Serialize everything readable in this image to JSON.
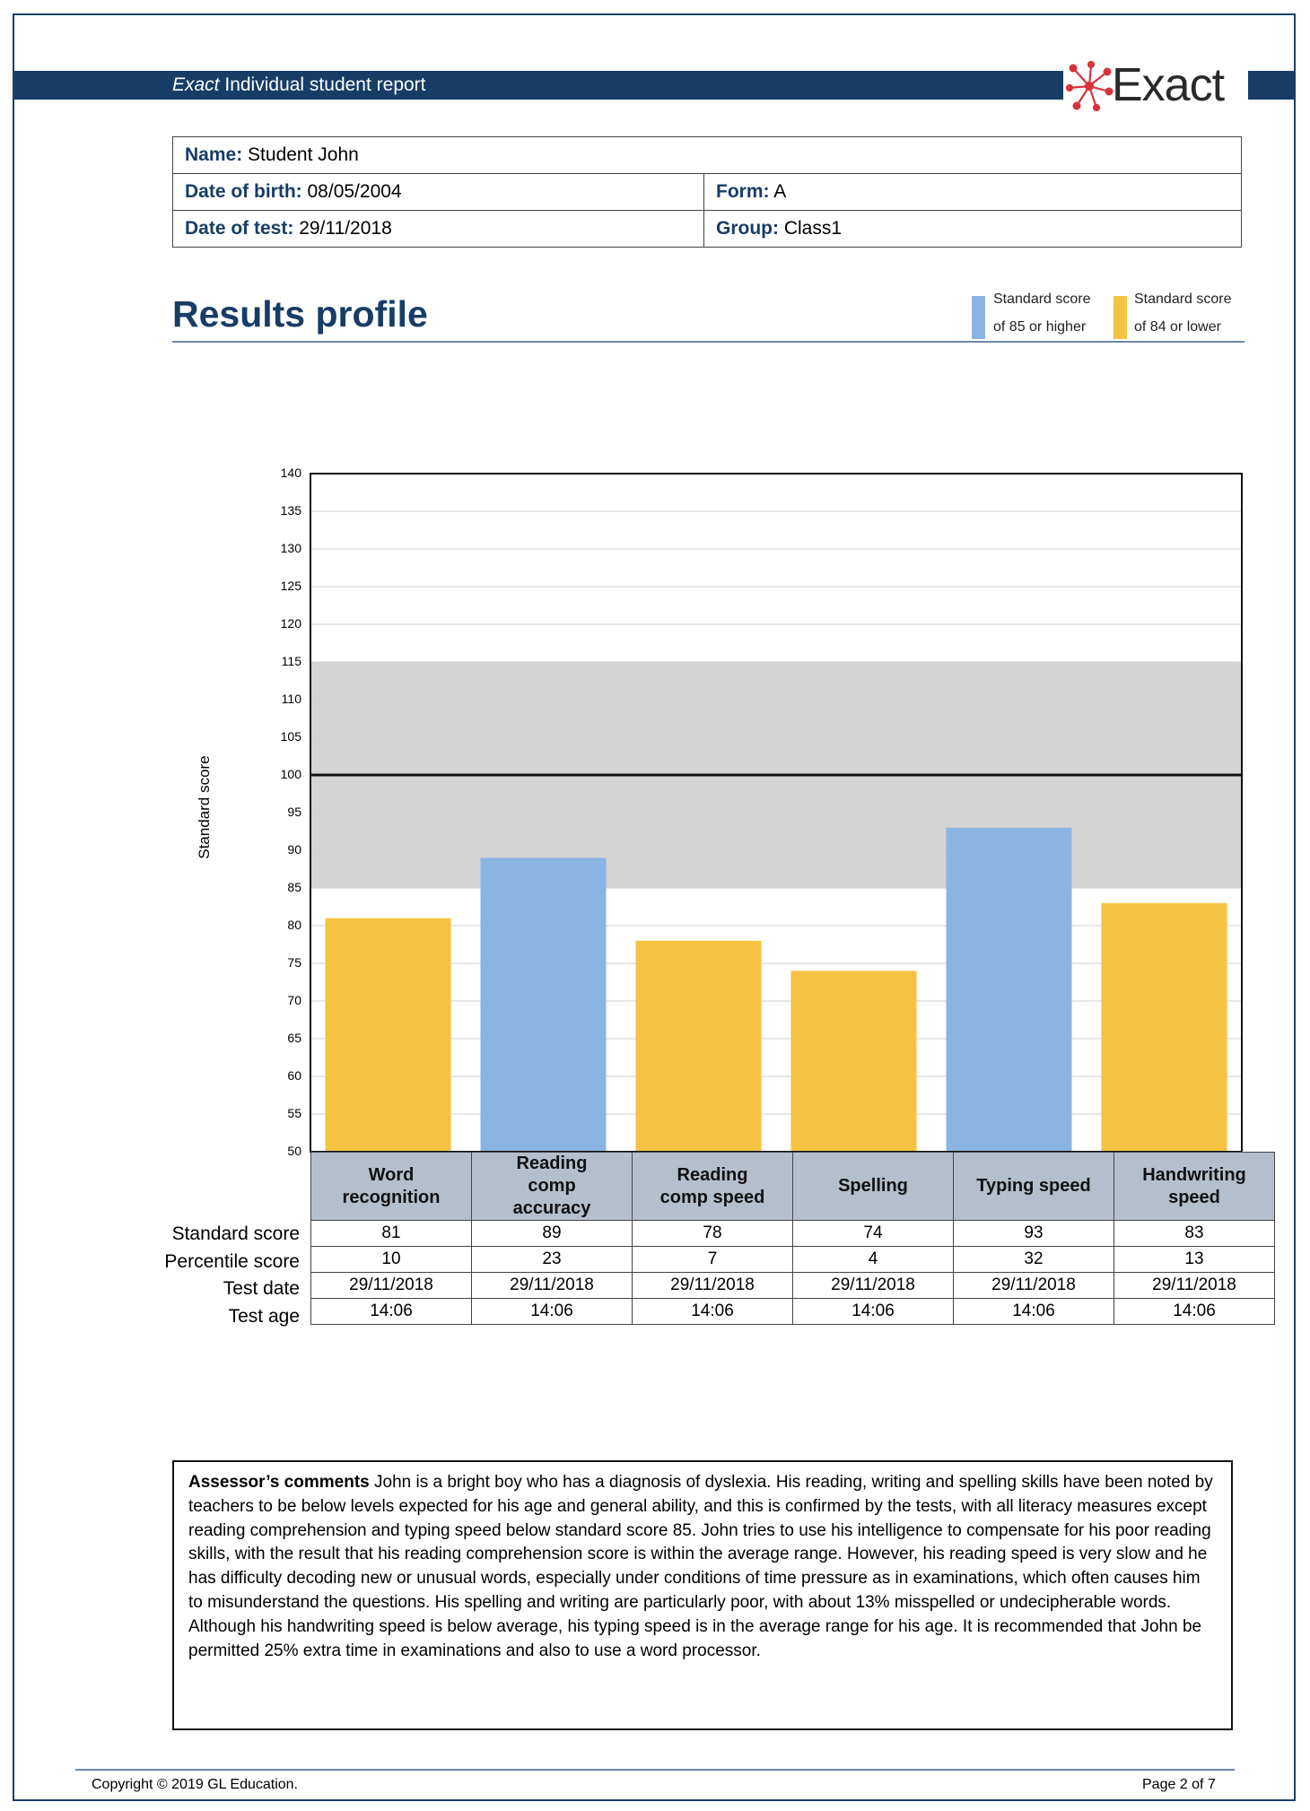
{
  "header": {
    "title_italic": "Exact",
    "title_rest": " Individual student report",
    "logo_text": "Exact"
  },
  "student": {
    "name_label": "Name:",
    "name": "Student John",
    "dob_label": "Date of birth:",
    "dob": "08/05/2004",
    "form_label": "Form:",
    "form": "A",
    "test_date_label": "Date of test:",
    "test_date": "29/11/2018",
    "group_label": "Group:",
    "group": "Class1"
  },
  "section_title": "Results profile",
  "legend": [
    {
      "line1": "Standard score",
      "line2": "of 85 or higher",
      "color": "#8ab4e2"
    },
    {
      "line1": "Standard score",
      "line2": "of 84 or lower",
      "color": "#f5c242"
    }
  ],
  "chart_data": {
    "type": "bar",
    "ylabel": "Standard score",
    "ylim": [
      50,
      140
    ],
    "yticks": [
      140,
      135,
      130,
      125,
      120,
      115,
      110,
      105,
      100,
      95,
      90,
      85,
      80,
      75,
      70,
      65,
      60,
      55,
      50
    ],
    "average_band": [
      85,
      115
    ],
    "reference_line": 100,
    "categories": [
      "Word recognition",
      "Reading comp accuracy",
      "Reading comp speed",
      "Spelling",
      "Typing speed",
      "Handwriting speed"
    ],
    "category_labels": [
      [
        "Word",
        "recognition"
      ],
      [
        "Reading",
        "comp",
        "accuracy"
      ],
      [
        "Reading",
        "comp speed"
      ],
      [
        "Spelling"
      ],
      [
        "Typing speed"
      ],
      [
        "Handwriting",
        "speed"
      ]
    ],
    "values": [
      81,
      89,
      78,
      74,
      93,
      83
    ],
    "colors": {
      "high": "#8ab4e2",
      "low": "#f5c242",
      "band": "#d4d4d4",
      "threshold": 85
    }
  },
  "table": {
    "row_labels": [
      "Standard score",
      "Percentile score",
      "Test date",
      "Test age"
    ],
    "standard": [
      "81",
      "89",
      "78",
      "74",
      "93",
      "83"
    ],
    "percentile": [
      "10",
      "23",
      "7",
      "4",
      "32",
      "13"
    ],
    "test_date": [
      "29/11/2018",
      "29/11/2018",
      "29/11/2018",
      "29/11/2018",
      "29/11/2018",
      "29/11/2018"
    ],
    "test_age": [
      "14:06",
      "14:06",
      "14:06",
      "14:06",
      "14:06",
      "14:06"
    ]
  },
  "comments": {
    "label": "Assessor’s comments",
    "text": " John is a bright boy who has a diagnosis of dyslexia. His reading, writing and spelling skills have been noted by teachers to be below levels expected for his age and general ability, and this is confirmed by the tests, with all literacy measures except reading comprehension and typing speed below standard score 85. John tries to use his intelligence to compensate for his poor reading skills, with the result that his reading comprehension score is within the average range. However, his reading speed is very slow and he has difficulty decoding new or unusual words, especially under conditions of time pressure as in examinations, which often causes him to misunderstand the questions. His spelling and writing are particularly poor, with about 13% misspelled or undecipherable words. Although his handwriting speed is below average, his typing speed is in the average range for his age. It is recommended that John be permitted 25% extra time in examinations and also to use a word processor."
  },
  "footer": {
    "copyright": "Copyright © 2019 GL Education.",
    "page": "Page 2 of 7"
  }
}
